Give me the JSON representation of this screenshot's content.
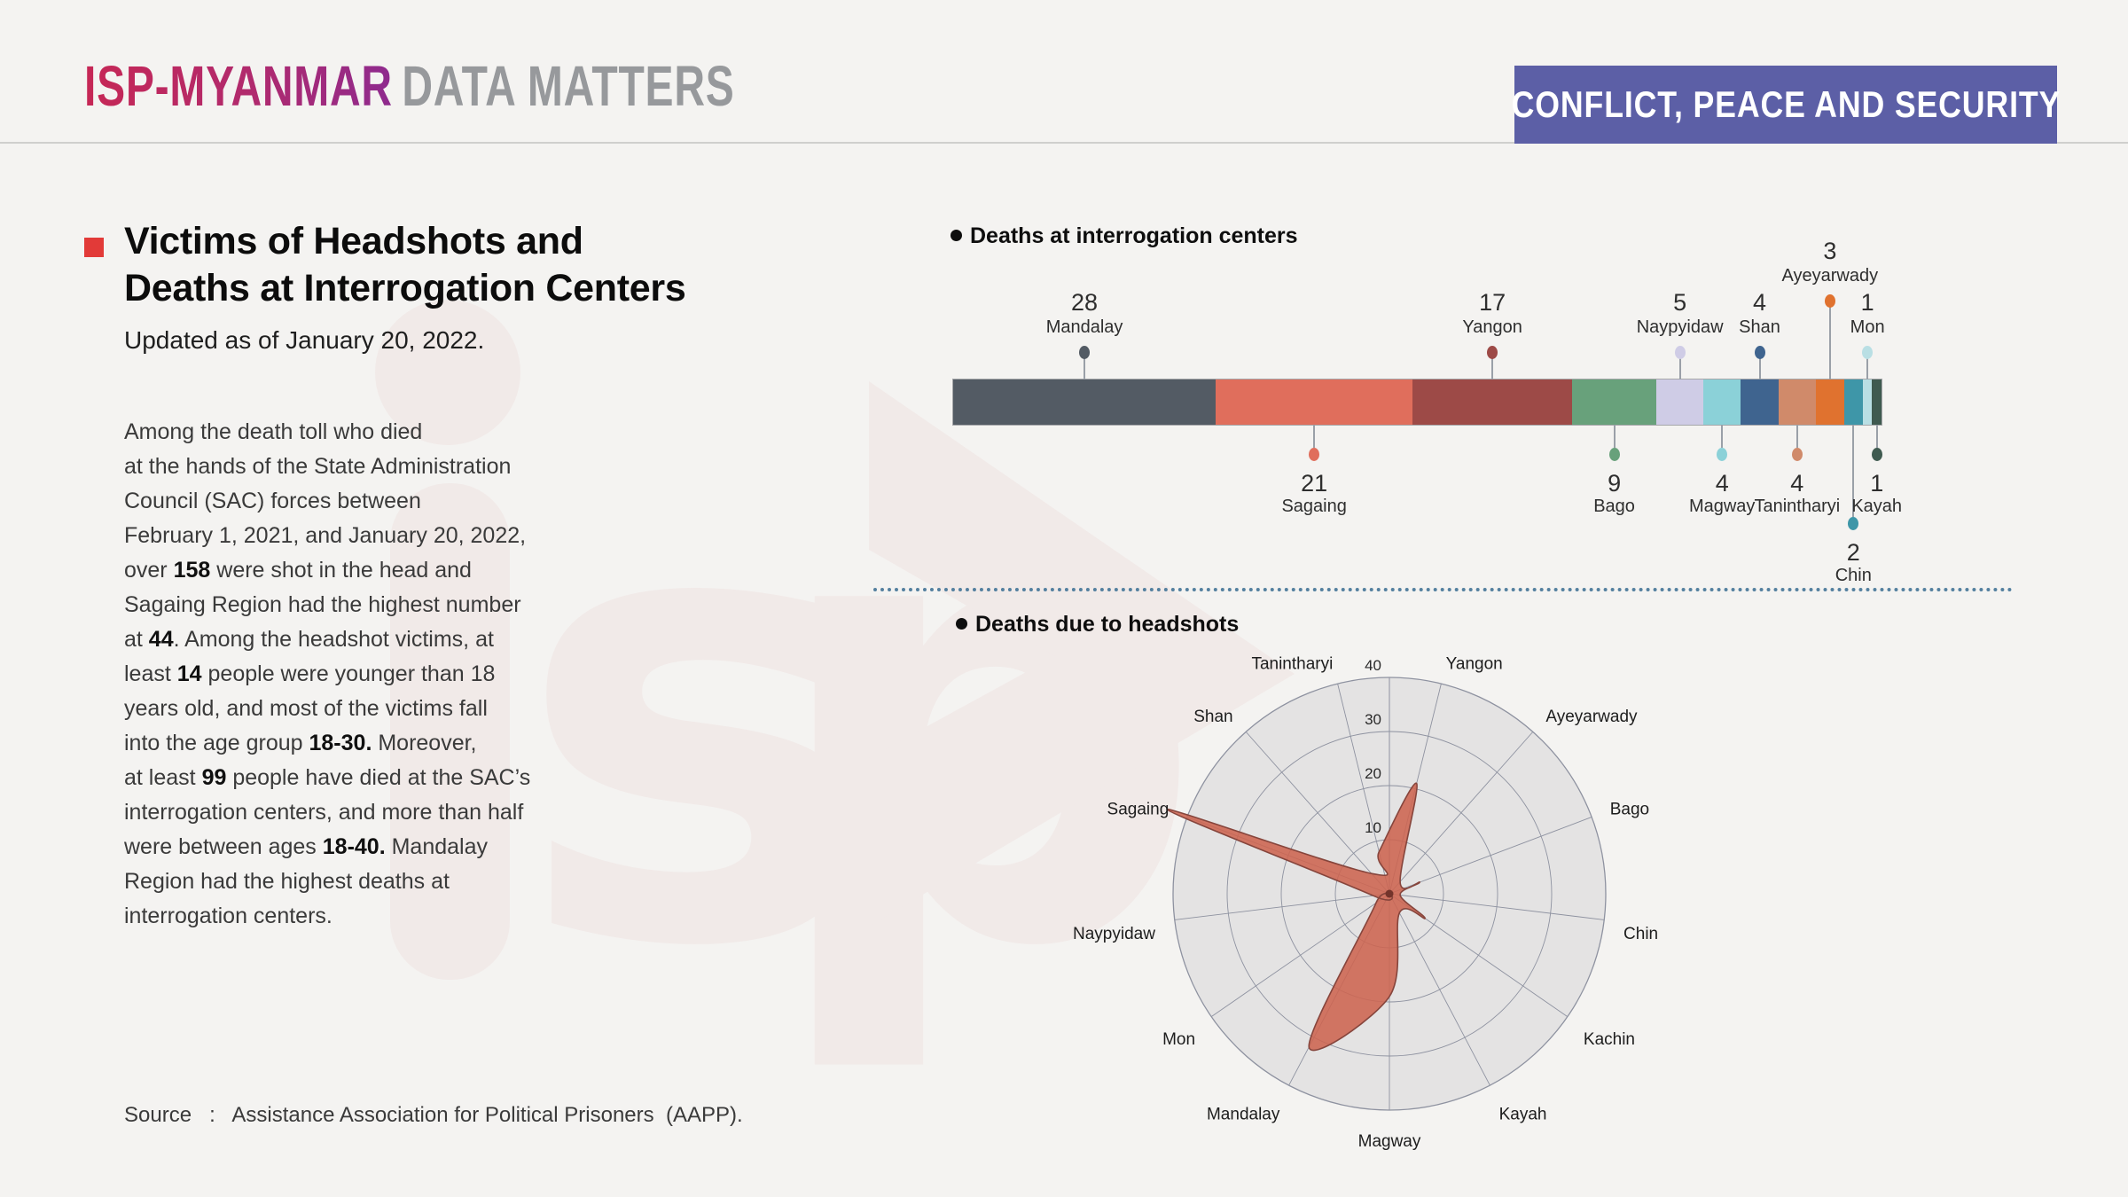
{
  "masthead": {
    "brand": "ISP-MYANMAR",
    "suffix": "DATA MATTERS",
    "badge": "CONFLICT, PEACE AND SECURITY"
  },
  "article": {
    "title_line1": "Victims of Headshots and",
    "title_line2": "Deaths at Interrogation Centers",
    "updated": "Updated as of January 20, 2022.",
    "paragraph_lines": [
      [
        {
          "t": "Among the death toll who died"
        }
      ],
      [
        {
          "t": "at the hands of the State Administration"
        }
      ],
      [
        {
          "t": "Council (SAC) forces between"
        }
      ],
      [
        {
          "t": "February 1, 2021, and January 20, 2022,"
        }
      ],
      [
        {
          "t": "over "
        },
        {
          "t": "158",
          "b": true
        },
        {
          "t": " were shot in the head and"
        }
      ],
      [
        {
          "t": "Sagaing Region had the highest number"
        }
      ],
      [
        {
          "t": "at "
        },
        {
          "t": "44",
          "b": true
        },
        {
          "t": ". Among the headshot victims, at"
        }
      ],
      [
        {
          "t": "least "
        },
        {
          "t": "14",
          "b": true
        },
        {
          "t": " people were younger than 18"
        }
      ],
      [
        {
          "t": "years old, and most of the victims fall"
        }
      ],
      [
        {
          "t": "into the age group "
        },
        {
          "t": "18-30.",
          "b": true
        },
        {
          "t": " Moreover,"
        }
      ],
      [
        {
          "t": "at least "
        },
        {
          "t": "99",
          "b": true
        },
        {
          "t": " people have died at the SAC’s"
        }
      ],
      [
        {
          "t": "interrogation centers, and more than half"
        }
      ],
      [
        {
          "t": "were between ages "
        },
        {
          "t": "18-40.",
          "b": true
        },
        {
          "t": " Mandalay"
        }
      ],
      [
        {
          "t": "Region had the highest deaths at"
        }
      ],
      [
        {
          "t": "interrogation centers."
        }
      ]
    ],
    "source_label": "Source",
    "source_sep": ":",
    "source_text": "Assistance Association for Political Prisoners  (AAPP)."
  },
  "chart_data": [
    {
      "type": "bar",
      "variant": "stacked-horizontal",
      "title": "Deaths at interrogation centers",
      "total": 99,
      "categories": [
        "Mandalay",
        "Sagaing",
        "Yangon",
        "Bago",
        "Naypyidaw",
        "Magway",
        "Shan",
        "Tanintharyi",
        "Ayeyarwady",
        "Chin",
        "Mon",
        "Kayah"
      ],
      "values": [
        28,
        21,
        17,
        9,
        5,
        4,
        4,
        4,
        3,
        2,
        1,
        1
      ],
      "colors": [
        "#535b64",
        "#e06e5c",
        "#9d4a47",
        "#68a17b",
        "#cfcce6",
        "#8bd1d8",
        "#3f648f",
        "#d08a6a",
        "#e0722f",
        "#3e96a8",
        "#b9dfe4",
        "#3f5a50"
      ],
      "label_side": [
        "top",
        "bottom",
        "top",
        "bottom",
        "top",
        "bottom",
        "top",
        "bottom",
        "top",
        "bottom",
        "top",
        "bottom"
      ],
      "label_long": [
        false,
        false,
        false,
        false,
        false,
        false,
        false,
        false,
        true,
        true,
        false,
        false
      ]
    },
    {
      "type": "radar",
      "variant": "rose-spline",
      "title": "Deaths due to headshots",
      "categories": [
        "Yangon",
        "Ayeyarwady",
        "Bago",
        "Chin",
        "Kachin",
        "Kayah",
        "Magway",
        "Mandalay",
        "Mon",
        "Naypyidaw",
        "Sagaing",
        "Shan",
        "Tanintharyi"
      ],
      "values": [
        21,
        3,
        6,
        2,
        8,
        4,
        19,
        32,
        3,
        3,
        44,
        5,
        8
      ],
      "rticks": [
        10,
        20,
        30,
        40
      ],
      "rmax": 40,
      "fill": "#cd6450",
      "stroke": "#86453c",
      "grid_color": "#8e92a0",
      "legend_position": "none",
      "grid": true
    }
  ],
  "colors": {
    "background": "#f4f3f1",
    "badge": "#5c5fa6",
    "brand_gradient_start": "#c62755",
    "brand_gradient_end": "#8e2a8e",
    "suffix_gray": "#97999c",
    "accent_red": "#e23a38",
    "divider_blue": "#54809f",
    "watermark_pink": "#c85a64"
  }
}
